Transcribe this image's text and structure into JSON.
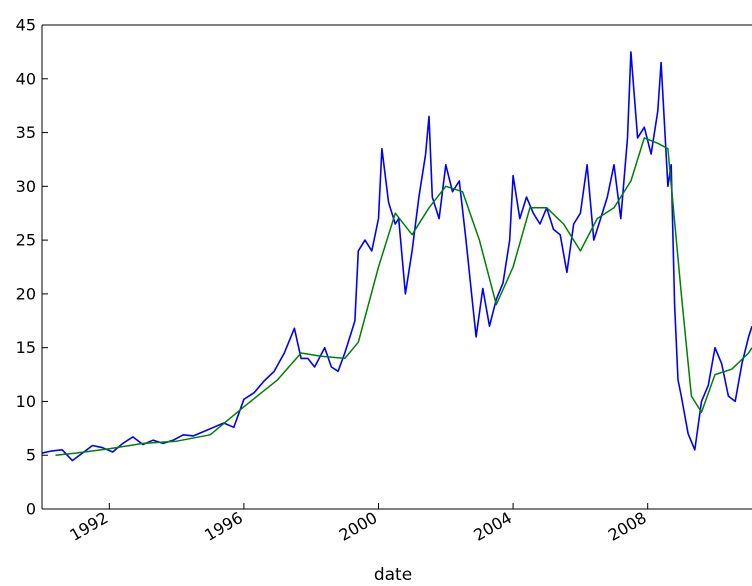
{
  "chart_data": {
    "type": "line",
    "title": "",
    "xlabel": "date",
    "ylabel": "",
    "xlim": [
      1990.0,
      2011.1
    ],
    "ylim": [
      0,
      45
    ],
    "x_ticks": [
      {
        "value": 1992,
        "label": "1992"
      },
      {
        "value": 1996,
        "label": "1996"
      },
      {
        "value": 2000,
        "label": "2000"
      },
      {
        "value": 2004,
        "label": "2004"
      },
      {
        "value": 2008,
        "label": "2008"
      }
    ],
    "y_ticks": [
      {
        "value": 0,
        "label": "0"
      },
      {
        "value": 5,
        "label": "5"
      },
      {
        "value": 10,
        "label": "10"
      },
      {
        "value": 15,
        "label": "15"
      },
      {
        "value": 20,
        "label": "20"
      },
      {
        "value": 25,
        "label": "25"
      },
      {
        "value": 30,
        "label": "30"
      },
      {
        "value": 35,
        "label": "35"
      },
      {
        "value": 40,
        "label": "40"
      },
      {
        "value": 45,
        "label": "45"
      }
    ],
    "grid": false,
    "legend": "none",
    "series": [
      {
        "color": "#0000ff",
        "x": [
          1990.0,
          1990.3,
          1990.6,
          1990.9,
          1991.2,
          1991.5,
          1991.8,
          1992.1,
          1992.4,
          1992.7,
          1993.0,
          1993.3,
          1993.6,
          1993.9,
          1994.2,
          1994.5,
          1994.8,
          1995.1,
          1995.4,
          1995.7,
          1996.0,
          1996.3,
          1996.6,
          1996.9,
          1997.2,
          1997.5,
          1997.7,
          1997.9,
          1998.1,
          1998.4,
          1998.6,
          1998.8,
          1999.0,
          1999.2,
          1999.3,
          1999.4,
          1999.6,
          1999.8,
          2000.0,
          2000.1,
          2000.3,
          2000.5,
          2000.6,
          2000.8,
          2001.0,
          2001.2,
          2001.4,
          2001.5,
          2001.6,
          2001.8,
          2002.0,
          2002.2,
          2002.4,
          2002.6,
          2002.8,
          2002.9,
          2003.1,
          2003.3,
          2003.5,
          2003.7,
          2003.9,
          2004.0,
          2004.2,
          2004.4,
          2004.6,
          2004.8,
          2005.0,
          2005.2,
          2005.4,
          2005.6,
          2005.8,
          2006.0,
          2006.2,
          2006.4,
          2006.6,
          2006.8,
          2007.0,
          2007.2,
          2007.4,
          2007.5,
          2007.7,
          2007.9,
          2008.1,
          2008.3,
          2008.4,
          2008.6,
          2008.7,
          2008.8,
          2008.9,
          2009.0,
          2009.2,
          2009.4,
          2009.6,
          2009.8,
          2010.0,
          2010.2,
          2010.4,
          2010.6,
          2010.8,
          2011.0,
          2011.1
        ],
        "y": [
          5.2,
          5.4,
          5.5,
          4.5,
          5.2,
          5.9,
          5.7,
          5.3,
          6.1,
          6.7,
          6.0,
          6.4,
          6.1,
          6.4,
          6.9,
          6.8,
          7.2,
          7.6,
          8.0,
          7.6,
          10.2,
          10.8,
          11.9,
          12.8,
          14.5,
          16.8,
          14.0,
          14.0,
          13.2,
          15.0,
          13.2,
          12.8,
          14.5,
          16.5,
          17.5,
          24.0,
          25.0,
          24.0,
          27.0,
          33.5,
          28.5,
          26.5,
          27.0,
          20.0,
          24.0,
          29.0,
          33.0,
          36.5,
          29.0,
          27.0,
          32.0,
          29.5,
          30.5,
          25.0,
          19.0,
          16.0,
          20.5,
          17.0,
          19.5,
          21.0,
          25.0,
          31.0,
          27.0,
          29.0,
          27.5,
          26.5,
          28.0,
          26.0,
          25.5,
          22.0,
          26.5,
          27.5,
          32.0,
          25.0,
          27.0,
          29.0,
          32.0,
          27.0,
          34.5,
          42.5,
          34.5,
          35.5,
          33.0,
          37.0,
          41.5,
          30.0,
          32.0,
          19.0,
          12.0,
          10.5,
          7.0,
          5.5,
          10.0,
          11.5,
          15.0,
          13.5,
          10.5,
          10.0,
          13.5,
          16.0,
          17.0
        ]
      },
      {
        "color": "#008000",
        "x": [
          1990.4,
          1991.0,
          1992.0,
          1993.0,
          1994.0,
          1995.0,
          1996.0,
          1997.0,
          1997.7,
          1998.3,
          1999.0,
          1999.4,
          2000.0,
          2000.5,
          2001.0,
          2001.5,
          2002.0,
          2002.5,
          2003.0,
          2003.5,
          2004.0,
          2004.5,
          2005.0,
          2005.5,
          2006.0,
          2006.5,
          2007.0,
          2007.5,
          2007.9,
          2008.3,
          2008.6,
          2009.0,
          2009.3,
          2009.6,
          2010.0,
          2010.5,
          2011.0,
          2011.1
        ],
        "y": [
          5.0,
          5.2,
          5.6,
          6.1,
          6.3,
          6.9,
          9.5,
          12.0,
          14.5,
          14.2,
          14.0,
          15.5,
          22.5,
          27.5,
          25.5,
          28.0,
          30.0,
          29.5,
          25.0,
          19.0,
          22.5,
          28.0,
          28.0,
          26.5,
          24.0,
          27.0,
          28.0,
          30.5,
          34.5,
          34.0,
          33.5,
          20.0,
          10.5,
          9.0,
          12.5,
          13.0,
          14.5,
          15.0
        ]
      }
    ]
  }
}
